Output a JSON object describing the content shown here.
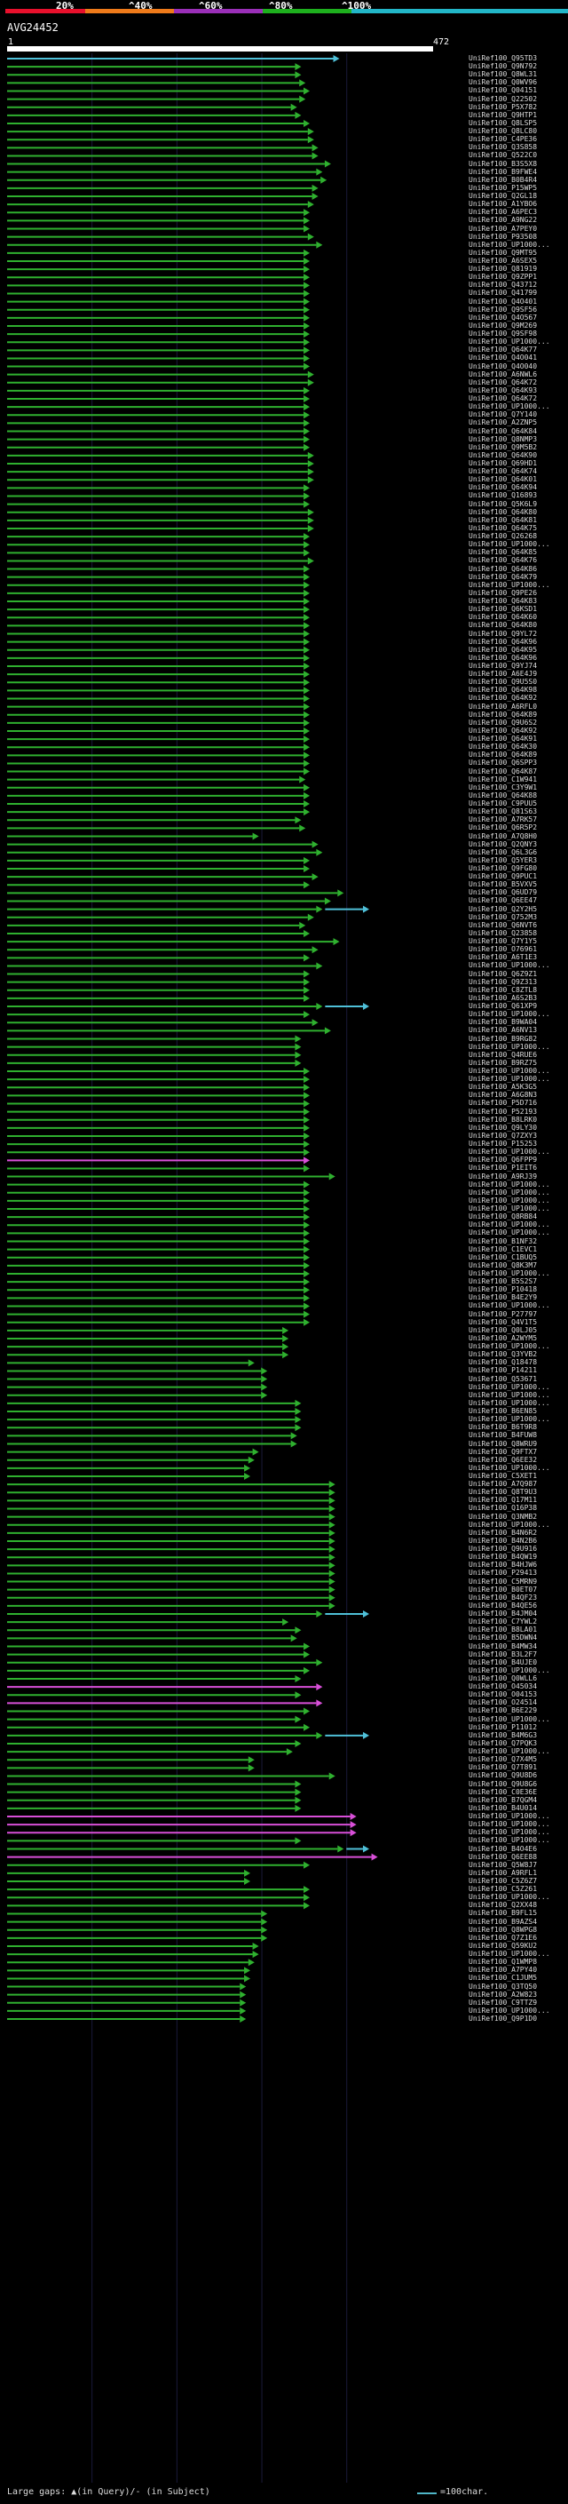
{
  "query": {
    "id": "AVG24452",
    "start": "1",
    "end": "472"
  },
  "scale": {
    "labels": [
      "20%",
      "^40%",
      "^60%",
      "^80%",
      "^100%"
    ],
    "colors": [
      "#e8102c",
      "#ef7a1a",
      "#9a2fb8",
      "#1eb01e",
      "#22b6c8"
    ]
  },
  "colors": {
    "hit": "#2fb02f",
    "hit_alt": "#d84fd8",
    "over": "#4fc0d8",
    "axis": "#ffffff"
  },
  "hits": [
    {
      "label": "UniRef100_Q95TD3",
      "end": 0.81,
      "mark": "arrow",
      "color": "over"
    },
    {
      "label": "UniRef100_Q9N792",
      "end": 0.72
    },
    {
      "label": "UniRef100_Q8WL31",
      "end": 0.72
    },
    {
      "label": "UniRef100_Q0WV96",
      "end": 0.73
    },
    {
      "label": "UniRef100_Q04151",
      "end": 0.74
    },
    {
      "label": "UniRef100_Q22502",
      "end": 0.73
    },
    {
      "label": "UniRef100_P5X782",
      "end": 0.71
    },
    {
      "label": "UniRef100_Q9HTP1",
      "end": 0.72
    },
    {
      "label": "UniRef100_Q8LSP5",
      "end": 0.74
    },
    {
      "label": "UniRef100_Q8LC80",
      "end": 0.75
    },
    {
      "label": "UniRef100_C4PE36",
      "end": 0.75
    },
    {
      "label": "UniRef100_Q3S858",
      "end": 0.76
    },
    {
      "label": "UniRef100_Q522C0",
      "end": 0.76
    },
    {
      "label": "UniRef100_B3S5X8",
      "end": 0.79
    },
    {
      "label": "UniRef100_B9FWE4",
      "end": 0.77
    },
    {
      "label": "UniRef100_B0B4R4",
      "end": 0.78
    },
    {
      "label": "UniRef100_P15WP5",
      "end": 0.76
    },
    {
      "label": "UniRef100_Q2GL18",
      "end": 0.76
    },
    {
      "label": "UniRef100_A1YBO6",
      "end": 0.75
    },
    {
      "label": "UniRef100_A6PEC3",
      "end": 0.74
    },
    {
      "label": "UniRef100_A9NG22",
      "end": 0.74
    },
    {
      "label": "UniRef100_A7PEY0",
      "end": 0.74
    },
    {
      "label": "UniRef100_P93508",
      "end": 0.75
    },
    {
      "label": "UniRef100_UP1000...",
      "end": 0.77
    },
    {
      "label": "UniRef100_Q9MT95",
      "end": 0.74
    },
    {
      "label": "UniRef100_A6SEX5",
      "end": 0.74
    },
    {
      "label": "UniRef100_Q81919",
      "end": 0.74
    },
    {
      "label": "UniRef100_Q9ZPP1",
      "end": 0.74
    },
    {
      "label": "UniRef100_Q43712",
      "end": 0.74
    },
    {
      "label": "UniRef100_Q41799",
      "end": 0.74
    },
    {
      "label": "UniRef100_Q4O401",
      "end": 0.74
    },
    {
      "label": "UniRef100_Q9SF56",
      "end": 0.74
    },
    {
      "label": "UniRef100_Q4O567",
      "end": 0.74
    },
    {
      "label": "UniRef100_Q9M269",
      "end": 0.74
    },
    {
      "label": "UniRef100_Q9SF98",
      "end": 0.74
    },
    {
      "label": "UniRef100_UP1000...",
      "end": 0.74
    },
    {
      "label": "UniRef100_Q64K77",
      "end": 0.74
    },
    {
      "label": "UniRef100_Q4O041",
      "end": 0.74
    },
    {
      "label": "UniRef100_Q4O040",
      "end": 0.74
    },
    {
      "label": "UniRef100_A6NWL6",
      "end": 0.75
    },
    {
      "label": "UniRef100_Q64K72",
      "end": 0.75
    },
    {
      "label": "UniRef100_Q64K93",
      "end": 0.74
    },
    {
      "label": "UniRef100_Q64K72",
      "end": 0.74
    },
    {
      "label": "UniRef100_UP1000...",
      "end": 0.74
    },
    {
      "label": "UniRef100_Q7Y140",
      "end": 0.74
    },
    {
      "label": "UniRef100_A2ZNP5",
      "end": 0.74
    },
    {
      "label": "UniRef100_Q64K84",
      "end": 0.74
    },
    {
      "label": "UniRef100_Q8NMP3",
      "end": 0.74
    },
    {
      "label": "UniRef100_Q9M5B2",
      "end": 0.74
    },
    {
      "label": "UniRef100_Q64K90",
      "end": 0.75
    },
    {
      "label": "UniRef100_Q69HD1",
      "end": 0.75
    },
    {
      "label": "UniRef100_Q64K74",
      "end": 0.75
    },
    {
      "label": "UniRef100_Q64K01",
      "end": 0.75
    },
    {
      "label": "UniRef100_Q64K94",
      "end": 0.74
    },
    {
      "label": "UniRef100_Q16893",
      "end": 0.74
    },
    {
      "label": "UniRef100_Q5K6L9",
      "end": 0.74
    },
    {
      "label": "UniRef100_Q64K80",
      "end": 0.75
    },
    {
      "label": "UniRef100_Q64K81",
      "end": 0.75
    },
    {
      "label": "UniRef100_Q64K75",
      "end": 0.75
    },
    {
      "label": "UniRef100_Q26268",
      "end": 0.74
    },
    {
      "label": "UniRef100_UP1000...",
      "end": 0.74
    },
    {
      "label": "UniRef100_Q64K85",
      "end": 0.74
    },
    {
      "label": "UniRef100_Q64K76",
      "end": 0.75
    },
    {
      "label": "UniRef100_Q64K86",
      "end": 0.74
    },
    {
      "label": "UniRef100_Q64K79",
      "end": 0.74
    },
    {
      "label": "UniRef100_UP1000...",
      "end": 0.74
    },
    {
      "label": "UniRef100_Q9PE26",
      "end": 0.74
    },
    {
      "label": "UniRef100_Q64K83",
      "end": 0.74
    },
    {
      "label": "UniRef100_Q6KSD1",
      "end": 0.74
    },
    {
      "label": "UniRef100_Q64K60",
      "end": 0.74
    },
    {
      "label": "UniRef100_Q64K80",
      "end": 0.74
    },
    {
      "label": "UniRef100_Q9YL72",
      "end": 0.74
    },
    {
      "label": "UniRef100_Q64K96",
      "end": 0.74
    },
    {
      "label": "UniRef100_Q64K95",
      "end": 0.74
    },
    {
      "label": "UniRef100_Q64K96",
      "end": 0.74
    },
    {
      "label": "UniRef100_Q9YJ74",
      "end": 0.74
    },
    {
      "label": "UniRef100_A6E4J9",
      "end": 0.74
    },
    {
      "label": "UniRef100_Q9U5S0",
      "end": 0.74
    },
    {
      "label": "UniRef100_Q64K98",
      "end": 0.74
    },
    {
      "label": "UniRef100_Q64K92",
      "end": 0.74
    },
    {
      "label": "UniRef100_A6RFL0",
      "end": 0.74
    },
    {
      "label": "UniRef100_Q64K89",
      "end": 0.74
    },
    {
      "label": "UniRef100_Q9U6S2",
      "end": 0.74
    },
    {
      "label": "UniRef100_Q64K92",
      "end": 0.74
    },
    {
      "label": "UniRef100_Q64K91",
      "end": 0.74
    },
    {
      "label": "UniRef100_Q64K30",
      "end": 0.74
    },
    {
      "label": "UniRef100_Q64K89",
      "end": 0.74
    },
    {
      "label": "UniRef100_Q6SPP3",
      "end": 0.74
    },
    {
      "label": "UniRef100_Q64K87",
      "end": 0.74
    },
    {
      "label": "UniRef100_C1W941",
      "end": 0.73
    },
    {
      "label": "UniRef100_C3Y9W1",
      "end": 0.74
    },
    {
      "label": "UniRef100_Q64K88",
      "end": 0.74
    },
    {
      "label": "UniRef100_C9PUU5",
      "end": 0.74
    },
    {
      "label": "UniRef100_Q81S63",
      "end": 0.74
    },
    {
      "label": "UniRef100_A7RK57",
      "end": 0.72
    },
    {
      "label": "UniRef100_Q6R5P2",
      "end": 0.73
    },
    {
      "label": "UniRef100_A7Q8H0",
      "end": 0.62
    },
    {
      "label": "UniRef100_Q2QNY3",
      "end": 0.76
    },
    {
      "label": "UniRef100_Q6L3G6",
      "end": 0.77
    },
    {
      "label": "UniRef100_Q5YER3",
      "end": 0.74
    },
    {
      "label": "UniRef100_Q9FG80",
      "end": 0.74
    },
    {
      "label": "UniRef100_Q9PUC1",
      "end": 0.76
    },
    {
      "label": "UniRef100_B5VXV5",
      "end": 0.74
    },
    {
      "label": "UniRef100_Q6UD79",
      "end": 0.82
    },
    {
      "label": "UniRef100_Q6EE47",
      "end": 0.79
    },
    {
      "label": "UniRef100_Q2Y2H5",
      "end": 0.77,
      "over": 0.88
    },
    {
      "label": "UniRef100_Q752M3",
      "end": 0.75
    },
    {
      "label": "UniRef100_Q6NVT6",
      "end": 0.73
    },
    {
      "label": "UniRef100_Q23858",
      "end": 0.74
    },
    {
      "label": "UniRef100_Q7Y1Y5",
      "end": 0.81
    },
    {
      "label": "UniRef100_O76961",
      "end": 0.76
    },
    {
      "label": "UniRef100_A6T1E3",
      "end": 0.74
    },
    {
      "label": "UniRef100_UP1000...",
      "end": 0.77
    },
    {
      "label": "UniRef100_Q6Z9Z1",
      "end": 0.74
    },
    {
      "label": "UniRef100_Q9Z313",
      "end": 0.74
    },
    {
      "label": "UniRef100_C8ZTL8",
      "end": 0.74
    },
    {
      "label": "UniRef100_A6S2B3",
      "end": 0.74
    },
    {
      "label": "UniRef100_Q61XP9",
      "end": 0.77,
      "over": 0.88
    },
    {
      "label": "UniRef100_UP1000...",
      "end": 0.74
    },
    {
      "label": "UniRef100_B9WA04",
      "end": 0.76
    },
    {
      "label": "UniRef100_A6NV13",
      "end": 0.79
    },
    {
      "label": "UniRef100_B9RG82",
      "end": 0.72
    },
    {
      "label": "UniRef100_UP1000...",
      "end": 0.72
    },
    {
      "label": "UniRef100_Q4RUE6",
      "end": 0.72
    },
    {
      "label": "UniRef100_B9RZ75",
      "end": 0.72
    },
    {
      "label": "UniRef100_UP1000...",
      "end": 0.74
    },
    {
      "label": "UniRef100_UP1000...",
      "end": 0.74
    },
    {
      "label": "UniRef100_A5K3G5",
      "end": 0.74
    },
    {
      "label": "UniRef100_A6G8N3",
      "end": 0.74
    },
    {
      "label": "UniRef100_P5D716",
      "end": 0.74
    },
    {
      "label": "UniRef100_P52193",
      "end": 0.74
    },
    {
      "label": "UniRef100_B8LRK0",
      "end": 0.74
    },
    {
      "label": "UniRef100_Q9LY30",
      "end": 0.74
    },
    {
      "label": "UniRef100_Q7ZXY3",
      "end": 0.74
    },
    {
      "label": "UniRef100_P15253",
      "end": 0.74
    },
    {
      "label": "UniRef100_UP1000...",
      "end": 0.74
    },
    {
      "label": "UniRef100_Q6FPP9",
      "end": 0.74,
      "color": "hit_alt"
    },
    {
      "label": "UniRef100_P1EIT6",
      "end": 0.74
    },
    {
      "label": "UniRef100_A9RJ39",
      "end": 0.8
    },
    {
      "label": "UniRef100_UP1000...",
      "end": 0.74
    },
    {
      "label": "UniRef100_UP1000...",
      "end": 0.74
    },
    {
      "label": "UniRef100_UP1000...",
      "end": 0.74
    },
    {
      "label": "UniRef100_UP1000...",
      "end": 0.74
    },
    {
      "label": "UniRef100_Q8RB84",
      "end": 0.74
    },
    {
      "label": "UniRef100_UP1000...",
      "end": 0.74
    },
    {
      "label": "UniRef100_UP1000...",
      "end": 0.74
    },
    {
      "label": "UniRef100_B1NF32",
      "end": 0.74
    },
    {
      "label": "UniRef100_C1EVC1",
      "end": 0.74
    },
    {
      "label": "UniRef100_C1BUQ5",
      "end": 0.74
    },
    {
      "label": "UniRef100_Q8K3M7",
      "end": 0.74
    },
    {
      "label": "UniRef100_UP1000...",
      "end": 0.74
    },
    {
      "label": "UniRef100_B5S2S7",
      "end": 0.74
    },
    {
      "label": "UniRef100_P10418",
      "end": 0.74
    },
    {
      "label": "UniRef100_B4E2Y9",
      "end": 0.74
    },
    {
      "label": "UniRef100_UP1000...",
      "end": 0.74
    },
    {
      "label": "UniRef100_P27797",
      "end": 0.74
    },
    {
      "label": "UniRef100_Q4V1T5",
      "end": 0.74
    },
    {
      "label": "UniRef100_Q0LJ05",
      "end": 0.69
    },
    {
      "label": "UniRef100_A2WYM5",
      "end": 0.69
    },
    {
      "label": "UniRef100_UP1000...",
      "end": 0.69
    },
    {
      "label": "UniRef100_Q3YVB2",
      "end": 0.69
    },
    {
      "label": "UniRef100_Q18478",
      "end": 0.61
    },
    {
      "label": "UniRef100_P14211",
      "end": 0.64
    },
    {
      "label": "UniRef100_Q53671",
      "end": 0.64
    },
    {
      "label": "UniRef100_UP1000...",
      "end": 0.64
    },
    {
      "label": "UniRef100_UP1000...",
      "end": 0.64
    },
    {
      "label": "UniRef100_UP1000...",
      "end": 0.72
    },
    {
      "label": "UniRef100_B6EN85",
      "end": 0.72
    },
    {
      "label": "UniRef100_UP1000...",
      "end": 0.72
    },
    {
      "label": "UniRef100_B6T9R8",
      "end": 0.72
    },
    {
      "label": "UniRef100_B4FUW8",
      "end": 0.71
    },
    {
      "label": "UniRef100_Q8WRU9",
      "end": 0.71
    },
    {
      "label": "UniRef100_Q9FTX7",
      "end": 0.62
    },
    {
      "label": "UniRef100_Q6EE32",
      "end": 0.61
    },
    {
      "label": "UniRef100_UP1000...",
      "end": 0.6
    },
    {
      "label": "UniRef100_C5XET1",
      "end": 0.6
    },
    {
      "label": "UniRef100_A7Q987",
      "end": 0.8
    },
    {
      "label": "UniRef100_Q8T9U3",
      "end": 0.8
    },
    {
      "label": "UniRef100_Q17M11",
      "end": 0.8
    },
    {
      "label": "UniRef100_Q16P38",
      "end": 0.8
    },
    {
      "label": "UniRef100_Q3NMB2",
      "end": 0.8
    },
    {
      "label": "UniRef100_UP1000...",
      "end": 0.8
    },
    {
      "label": "UniRef100_B4N6R2",
      "end": 0.8
    },
    {
      "label": "UniRef100_B4N2B6",
      "end": 0.8
    },
    {
      "label": "UniRef100_Q9U916",
      "end": 0.8
    },
    {
      "label": "UniRef100_B4QW19",
      "end": 0.8
    },
    {
      "label": "UniRef100_B4HJW6",
      "end": 0.8
    },
    {
      "label": "UniRef100_P29413",
      "end": 0.8
    },
    {
      "label": "UniRef100_C5MRN9",
      "end": 0.8
    },
    {
      "label": "UniRef100_B0ET07",
      "end": 0.8
    },
    {
      "label": "UniRef100_B4QF23",
      "end": 0.8
    },
    {
      "label": "UniRef100_B4QE56",
      "end": 0.8
    },
    {
      "label": "UniRef100_B4JM04",
      "end": 0.77,
      "over": 0.88
    },
    {
      "label": "UniRef100_C7YWL2",
      "end": 0.69
    },
    {
      "label": "UniRef100_B8LA01",
      "end": 0.72
    },
    {
      "label": "UniRef100_B5DWN4",
      "end": 0.71
    },
    {
      "label": "UniRef100_B4MW34",
      "end": 0.74
    },
    {
      "label": "UniRef100_B3L2F7",
      "end": 0.74
    },
    {
      "label": "UniRef100_B4UJE0",
      "end": 0.77
    },
    {
      "label": "UniRef100_UP1000...",
      "end": 0.74
    },
    {
      "label": "UniRef100_Q0WLL6",
      "end": 0.72
    },
    {
      "label": "UniRef100_O45034",
      "end": 0.77,
      "color": "hit_alt"
    },
    {
      "label": "UniRef100_O04153",
      "end": 0.72
    },
    {
      "label": "UniRef100_O24514",
      "end": 0.77,
      "color": "hit_alt"
    },
    {
      "label": "UniRef100_B6E229",
      "end": 0.74
    },
    {
      "label": "UniRef100_UP1000...",
      "end": 0.72
    },
    {
      "label": "UniRef100_P11012",
      "end": 0.74
    },
    {
      "label": "UniRef100_B4M6G3",
      "end": 0.77,
      "over": 0.88
    },
    {
      "label": "UniRef100_Q7PQK3",
      "end": 0.72
    },
    {
      "label": "UniRef100_UP1000...",
      "end": 0.7
    },
    {
      "label": "UniRef100_Q7X4M5",
      "end": 0.61
    },
    {
      "label": "UniRef100_Q7T891",
      "end": 0.61
    },
    {
      "label": "UniRef100_Q9U8D6",
      "end": 0.8
    },
    {
      "label": "UniRef100_Q9U8G6",
      "end": 0.72
    },
    {
      "label": "UniRef100_C0E36E",
      "end": 0.72
    },
    {
      "label": "UniRef100_B7QGM4",
      "end": 0.72
    },
    {
      "label": "UniRef100_B4U014",
      "end": 0.72
    },
    {
      "label": "UniRef100_UP1000...",
      "end": 0.85,
      "color": "hit_alt"
    },
    {
      "label": "UniRef100_UP1000...",
      "end": 0.85,
      "color": "hit_alt"
    },
    {
      "label": "UniRef100_UP1000...",
      "end": 0.85,
      "color": "hit_alt"
    },
    {
      "label": "UniRef100_UP1000...",
      "end": 0.72
    },
    {
      "label": "UniRef100_B4O4E6",
      "end": 0.82,
      "over": 0.88
    },
    {
      "label": "UniRef100_Q6EE88",
      "end": 0.9,
      "color": "hit_alt"
    },
    {
      "label": "UniRef100_Q5W8J7",
      "end": 0.74
    },
    {
      "label": "UniRef100_A9RFL1",
      "end": 0.6
    },
    {
      "label": "UniRef100_C5Z6Z7",
      "end": 0.6
    },
    {
      "label": "UniRef100_C5Z261",
      "end": 0.74
    },
    {
      "label": "UniRef100_UP1000...",
      "end": 0.74
    },
    {
      "label": "UniRef100_Q2XX48",
      "end": 0.74
    },
    {
      "label": "UniRef100_B9FL15",
      "end": 0.64
    },
    {
      "label": "UniRef100_B9AZS4",
      "end": 0.64
    },
    {
      "label": "UniRef100_Q8WPG8",
      "end": 0.64
    },
    {
      "label": "UniRef100_Q7Z1E6",
      "end": 0.64
    },
    {
      "label": "UniRef100_Q59KU2",
      "end": 0.62
    },
    {
      "label": "UniRef100_UP1000...",
      "end": 0.62
    },
    {
      "label": "UniRef100_Q1WMP8",
      "end": 0.61
    },
    {
      "label": "UniRef100_A7PY40",
      "end": 0.6
    },
    {
      "label": "UniRef100_C1JUM5",
      "end": 0.6
    },
    {
      "label": "UniRef100_Q3TQ50",
      "end": 0.59
    },
    {
      "label": "UniRef100_A2W823",
      "end": 0.59
    },
    {
      "label": "UniRef100_C9TTZ9",
      "end": 0.59
    },
    {
      "label": "UniRef100_UP1000...",
      "end": 0.59
    },
    {
      "label": "UniRef100_Q9P1D0",
      "end": 0.59
    }
  ],
  "footer": {
    "gaps_text": "Large gaps: ▲(in Query)/- (in Subject)",
    "legend_text": "=100char."
  }
}
